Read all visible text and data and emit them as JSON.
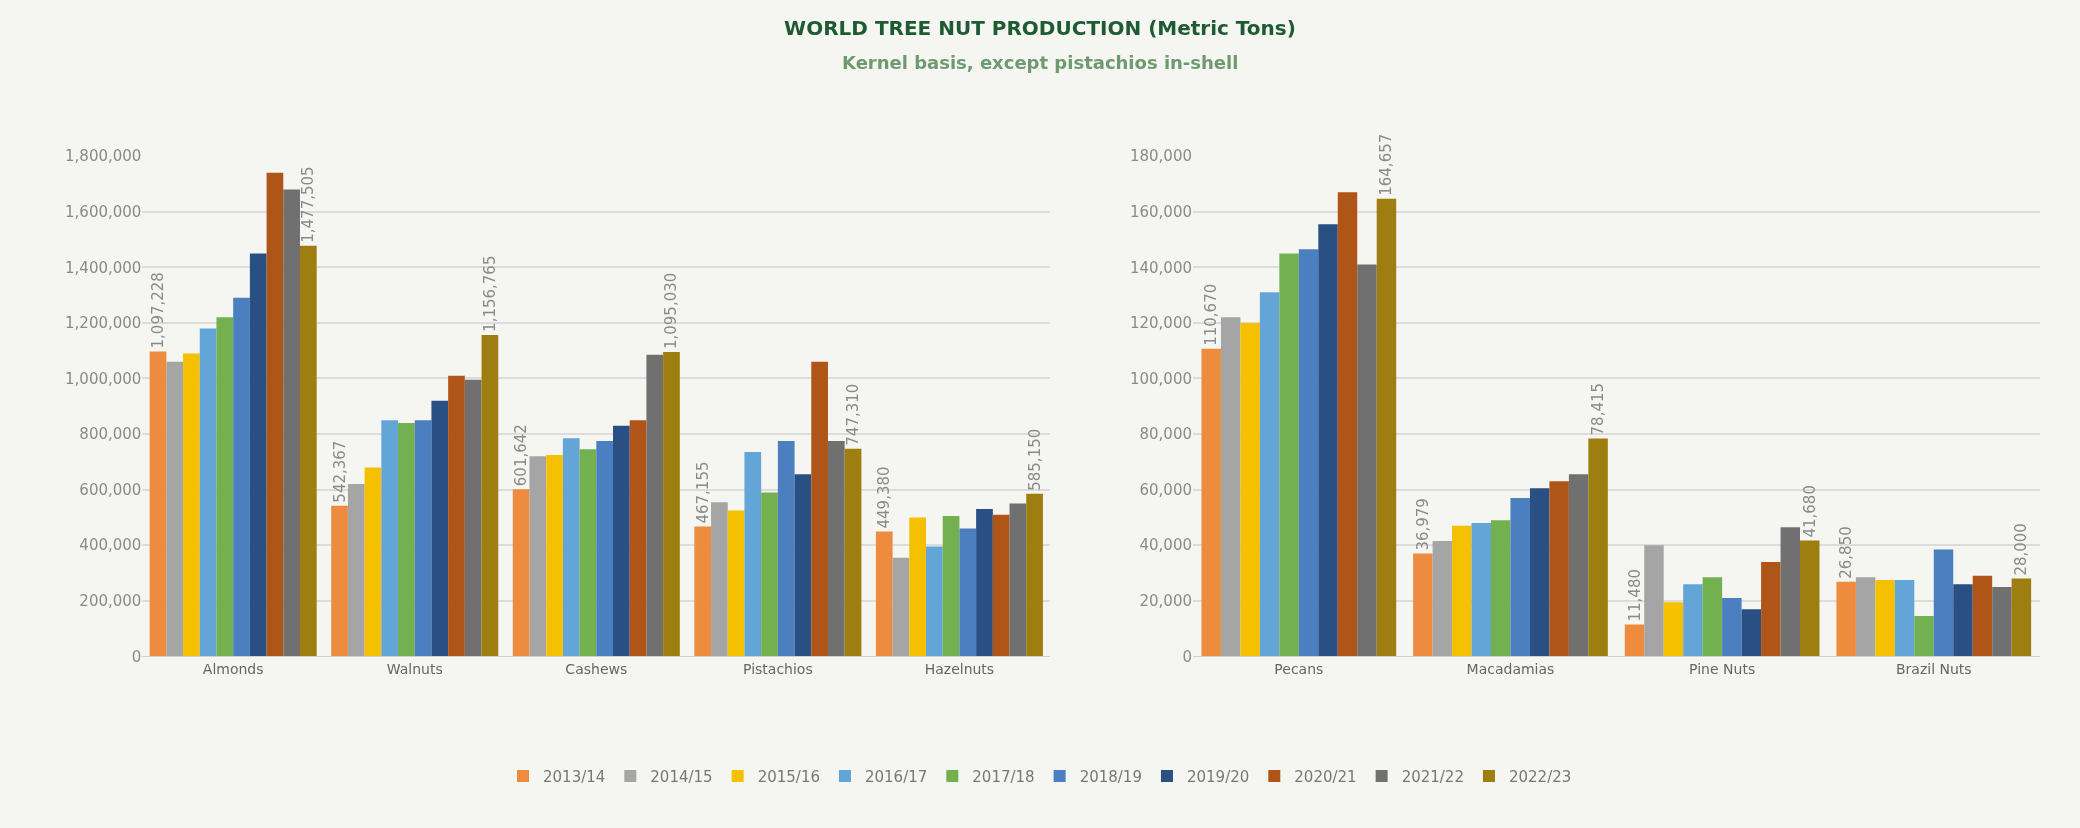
{
  "chart_data": [
    {
      "type": "bar",
      "title": "WORLD TREE NUT PRODUCTION (Metric Tons)",
      "subtitle": "Kernel basis, except pistachios in-shell",
      "categories": [
        "Almonds",
        "Walnuts",
        "Cashews",
        "Pistachios",
        "Hazelnuts"
      ],
      "ylim": [
        0,
        1800000
      ],
      "yticks": [
        0,
        {
          "value": 200000,
          "label": "200,000"
        },
        {
          "value": 400000,
          "label": "400,000"
        },
        {
          "value": 600000,
          "label": "600,000"
        },
        {
          "value": 800000,
          "label": "800,000"
        },
        {
          "value": 1000000,
          "label": "1,000,000"
        },
        {
          "value": 1200000,
          "label": "1,200,000"
        },
        {
          "value": 1400000,
          "label": "1,400,000"
        },
        {
          "value": 1600000,
          "label": "1,600,000"
        },
        {
          "value": 1800000,
          "label": "1,800,000"
        }
      ],
      "grid": "y",
      "legend": "bottom",
      "series": [
        {
          "name": "2013/14",
          "color": "#ed8b3e",
          "values": [
            1097228,
            542367,
            601642,
            467155,
            449380
          ],
          "value_labels": [
            "1,097,228",
            "542,367",
            "601,642",
            "467,155",
            "449,380"
          ]
        },
        {
          "name": "2014/15",
          "color": "#a5a5a5",
          "values": [
            1060000,
            620000,
            720000,
            555000,
            355000
          ]
        },
        {
          "name": "2015/16",
          "color": "#f5c000",
          "values": [
            1090000,
            680000,
            725000,
            525000,
            500000
          ]
        },
        {
          "name": "2016/17",
          "color": "#64a5d8",
          "values": [
            1180000,
            850000,
            785000,
            735000,
            395000
          ]
        },
        {
          "name": "2017/18",
          "color": "#72b050",
          "values": [
            1220000,
            840000,
            745000,
            590000,
            505000
          ]
        },
        {
          "name": "2018/19",
          "color": "#4b7fbf",
          "values": [
            1290000,
            850000,
            775000,
            775000,
            460000
          ]
        },
        {
          "name": "2019/20",
          "color": "#2a4f82",
          "values": [
            1450000,
            920000,
            830000,
            655000,
            530000
          ]
        },
        {
          "name": "2020/21",
          "color": "#b05518",
          "values": [
            1740000,
            1010000,
            850000,
            1060000,
            510000
          ]
        },
        {
          "name": "2021/22",
          "color": "#707070",
          "values": [
            1680000,
            995000,
            1085000,
            775000,
            550000
          ]
        },
        {
          "name": "2022/23",
          "color": "#9e7e10",
          "values": [
            1477505,
            1156765,
            1095030,
            747310,
            585150
          ],
          "value_labels": [
            "1,477,505",
            "1,156,765",
            "1,095,030",
            "747,310",
            "585,150"
          ]
        }
      ]
    },
    {
      "type": "bar",
      "categories": [
        "Pecans",
        "Macadamias",
        "Pine Nuts",
        "Brazil Nuts"
      ],
      "ylim": [
        0,
        180000
      ],
      "yticks": [
        0,
        {
          "value": 20000,
          "label": "20,000"
        },
        {
          "value": 40000,
          "label": "40,000"
        },
        {
          "value": 60000,
          "label": "60,000"
        },
        {
          "value": 80000,
          "label": "80,000"
        },
        {
          "value": 100000,
          "label": "100,000"
        },
        {
          "value": 120000,
          "label": "120,000"
        },
        {
          "value": 140000,
          "label": "140,000"
        },
        {
          "value": 160000,
          "label": "160,000"
        },
        {
          "value": 180000,
          "label": "180,000"
        }
      ],
      "grid": "y",
      "series": [
        {
          "name": "2013/14",
          "color": "#ed8b3e",
          "values": [
            110670,
            36979,
            11480,
            26850
          ],
          "value_labels": [
            "110,670",
            "36,979",
            "11,480",
            "26,850"
          ]
        },
        {
          "name": "2014/15",
          "color": "#a5a5a5",
          "values": [
            122000,
            41500,
            40000,
            28500
          ]
        },
        {
          "name": "2015/16",
          "color": "#f5c000",
          "values": [
            120000,
            47000,
            19500,
            27500
          ]
        },
        {
          "name": "2016/17",
          "color": "#64a5d8",
          "values": [
            131000,
            48000,
            26000,
            27500
          ]
        },
        {
          "name": "2017/18",
          "color": "#72b050",
          "values": [
            145000,
            49000,
            28500,
            14500
          ]
        },
        {
          "name": "2018/19",
          "color": "#4b7fbf",
          "values": [
            146500,
            57000,
            21000,
            38500
          ]
        },
        {
          "name": "2019/20",
          "color": "#2a4f82",
          "values": [
            155500,
            60500,
            17000,
            26000
          ]
        },
        {
          "name": "2020/21",
          "color": "#b05518",
          "values": [
            167000,
            63000,
            34000,
            29000
          ]
        },
        {
          "name": "2021/22",
          "color": "#707070",
          "values": [
            141000,
            65500,
            46500,
            25000
          ]
        },
        {
          "name": "2022/23",
          "color": "#9e7e10",
          "values": [
            164657,
            78415,
            41680,
            28000
          ],
          "value_labels": [
            "164,657",
            "78,415",
            "41,680",
            "28,000"
          ]
        }
      ]
    }
  ]
}
